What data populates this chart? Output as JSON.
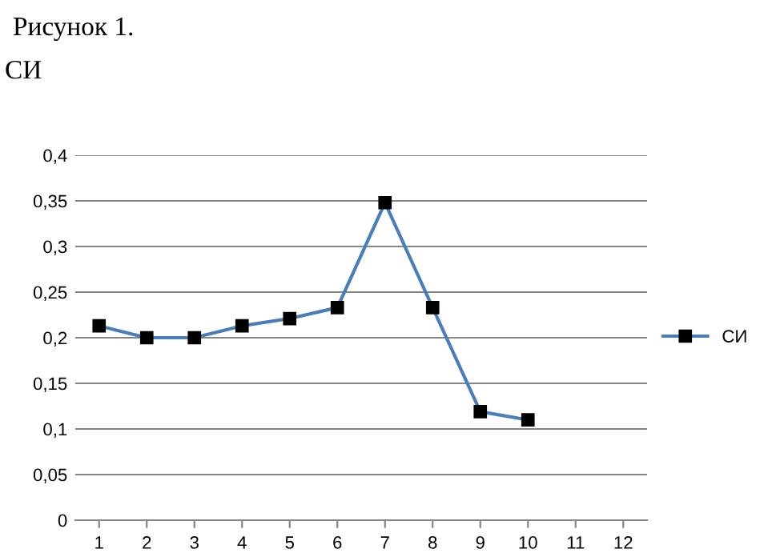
{
  "chart_data": {
    "type": "line",
    "title": "Рисунок 1.",
    "subtitle": "СИ",
    "categories": [
      "1",
      "2",
      "3",
      "4",
      "5",
      "6",
      "7",
      "8",
      "9",
      "10",
      "11",
      "12"
    ],
    "series": [
      {
        "name": "СИ",
        "color": "#4a7ebb",
        "values": [
          0.213,
          0.2,
          0.2,
          0.213,
          0.221,
          0.233,
          0.348,
          0.233,
          0.119,
          0.11,
          null,
          null
        ]
      }
    ],
    "ylim": [
      0,
      0.4
    ],
    "yticks": [
      {
        "value": 0,
        "label": "0"
      },
      {
        "value": 0.05,
        "label": "0,05"
      },
      {
        "value": 0.1,
        "label": "0,1"
      },
      {
        "value": 0.15,
        "label": "0,15"
      },
      {
        "value": 0.2,
        "label": "0,2"
      },
      {
        "value": 0.25,
        "label": "0,25"
      },
      {
        "value": 0.3,
        "label": "0,3"
      },
      {
        "value": 0.35,
        "label": "0,35"
      },
      {
        "value": 0.4,
        "label": "0,4"
      }
    ],
    "grid": "y",
    "legend": "right",
    "marker": "square",
    "line_style": "solid"
  }
}
